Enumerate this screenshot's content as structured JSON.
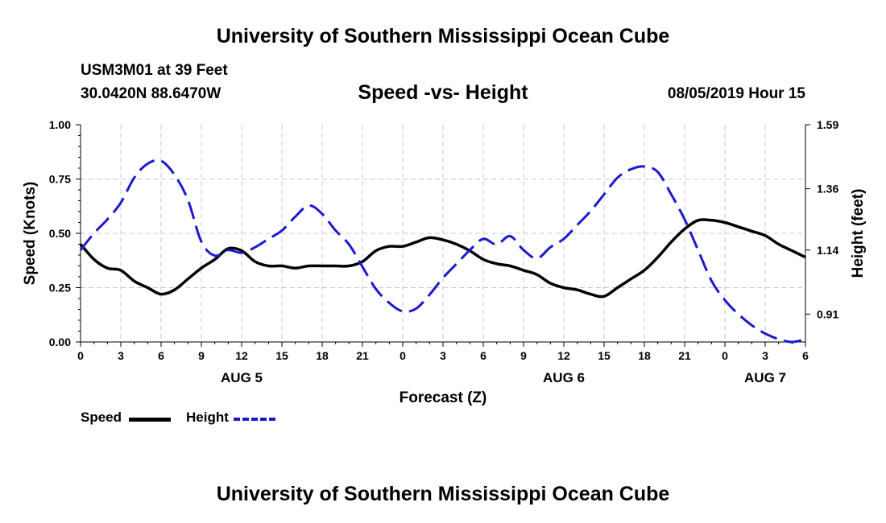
{
  "header": {
    "title": "University of Southern Mississippi Ocean Cube",
    "station": "USM3M01 at 39 Feet",
    "coords": "30.0420N 88.6470W",
    "datetime": "08/05/2019 Hour 15"
  },
  "footer": {
    "title": "University of Southern Mississippi Ocean Cube"
  },
  "legend": {
    "speed_label": "Speed",
    "height_label": "Height"
  },
  "colors": {
    "speed": "#000000",
    "height": "#1a1acc",
    "grid": "#c8c8c8"
  },
  "chart_data": {
    "type": "line",
    "title": "Speed -vs- Height",
    "xlabel": "Forecast (Z)",
    "ylabel": "Speed (Knots)",
    "ylabel_right": "Height (feet)",
    "xlim": [
      0,
      54
    ],
    "ylim": [
      0,
      1
    ],
    "ylim_right": [
      0.81,
      1.59
    ],
    "x_ticks": [
      0,
      3,
      6,
      9,
      12,
      15,
      18,
      21,
      24,
      27,
      30,
      33,
      36,
      39,
      42,
      45,
      48,
      51,
      54
    ],
    "x_tick_labels": [
      "0",
      "3",
      "6",
      "9",
      "12",
      "15",
      "18",
      "21",
      "0",
      "3",
      "6",
      "9",
      "12",
      "15",
      "18",
      "21",
      "0",
      "3",
      "6"
    ],
    "y_ticks": [
      0,
      0.25,
      0.5,
      0.75,
      1.0
    ],
    "y_tick_labels": [
      "0.00",
      "0.25",
      "0.50",
      "0.75",
      "1.00"
    ],
    "y_ticks_right": [
      0.91,
      1.14,
      1.36,
      1.59
    ],
    "y_tick_labels_right": [
      "0.91",
      "1.14",
      "1.36",
      "1.59"
    ],
    "date_labels": [
      {
        "x": 12,
        "text": "AUG 5"
      },
      {
        "x": 36,
        "text": "AUG 6"
      },
      {
        "x": 51,
        "text": "AUG 7"
      }
    ],
    "series": [
      {
        "name": "Speed",
        "axis": "left",
        "style": "solid",
        "x": [
          0,
          1,
          2,
          3,
          4,
          5,
          6,
          7,
          8,
          9,
          10,
          11,
          12,
          13,
          14,
          15,
          16,
          17,
          18,
          19,
          20,
          21,
          22,
          23,
          24,
          25,
          26,
          27,
          28,
          29,
          30,
          31,
          32,
          33,
          34,
          35,
          36,
          37,
          38,
          39,
          40,
          41,
          42,
          43,
          44,
          45,
          46,
          47,
          48,
          49,
          50,
          51,
          52,
          53,
          54
        ],
        "values": [
          0.45,
          0.38,
          0.34,
          0.33,
          0.28,
          0.25,
          0.22,
          0.24,
          0.29,
          0.34,
          0.38,
          0.43,
          0.42,
          0.37,
          0.35,
          0.35,
          0.34,
          0.35,
          0.35,
          0.35,
          0.35,
          0.37,
          0.42,
          0.44,
          0.44,
          0.46,
          0.48,
          0.47,
          0.45,
          0.42,
          0.38,
          0.36,
          0.35,
          0.33,
          0.31,
          0.27,
          0.25,
          0.24,
          0.22,
          0.21,
          0.25,
          0.29,
          0.33,
          0.39,
          0.46,
          0.52,
          0.56,
          0.56,
          0.55,
          0.53,
          0.51,
          0.49,
          0.45,
          0.42,
          0.39
        ]
      },
      {
        "name": "Height",
        "axis": "right",
        "style": "dashed",
        "x": [
          0,
          1,
          2,
          3,
          4,
          5,
          6,
          7,
          8,
          9,
          10,
          11,
          12,
          13,
          14,
          15,
          16,
          17,
          18,
          19,
          20,
          21,
          22,
          23,
          24,
          25,
          26,
          27,
          28,
          29,
          30,
          31,
          32,
          33,
          34,
          35,
          36,
          37,
          38,
          39,
          40,
          41,
          42,
          43,
          44,
          45,
          46,
          47,
          48,
          49,
          50,
          51,
          52,
          53,
          54
        ],
        "values": [
          1.14,
          1.2,
          1.25,
          1.31,
          1.4,
          1.45,
          1.46,
          1.41,
          1.32,
          1.17,
          1.12,
          1.14,
          1.13,
          1.15,
          1.18,
          1.21,
          1.26,
          1.3,
          1.27,
          1.21,
          1.16,
          1.08,
          1.0,
          0.95,
          0.92,
          0.93,
          0.98,
          1.04,
          1.09,
          1.14,
          1.18,
          1.16,
          1.19,
          1.14,
          1.11,
          1.15,
          1.18,
          1.23,
          1.28,
          1.34,
          1.4,
          1.43,
          1.44,
          1.42,
          1.34,
          1.25,
          1.14,
          1.03,
          0.96,
          0.91,
          0.87,
          0.84,
          0.82,
          0.81,
          0.82
        ]
      }
    ]
  }
}
